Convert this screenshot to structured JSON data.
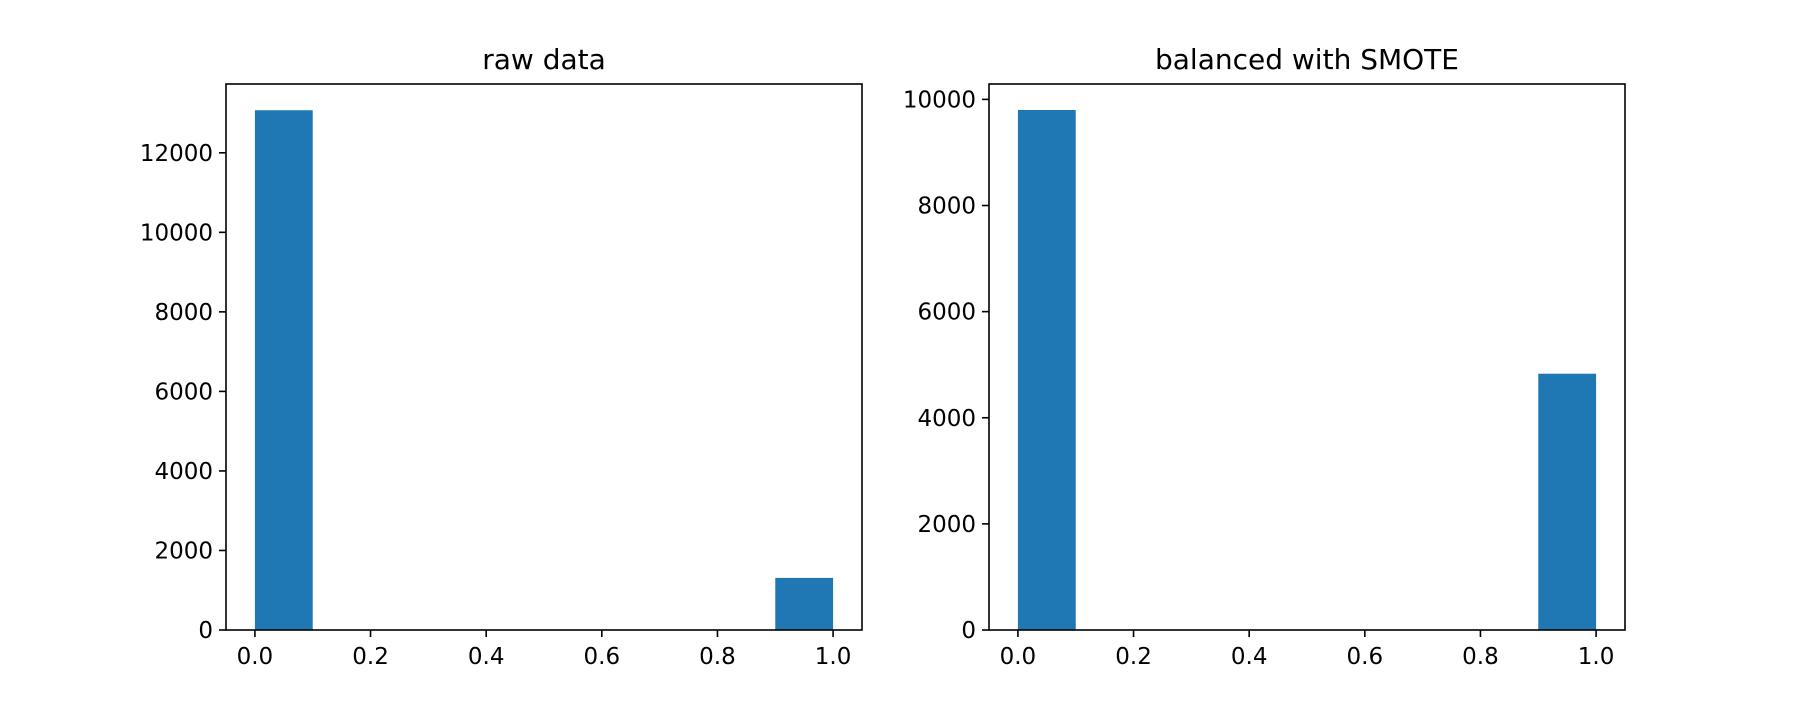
{
  "chart_data": [
    {
      "type": "bar",
      "title": "raw data",
      "xlabel": "",
      "ylabel": "",
      "xlim": [
        -0.05,
        1.05
      ],
      "ylim": [
        0,
        13730
      ],
      "xticks": [
        0.0,
        0.2,
        0.4,
        0.6,
        0.8,
        1.0
      ],
      "xtick_labels": [
        "0.0",
        "0.2",
        "0.4",
        "0.6",
        "0.8",
        "1.0"
      ],
      "yticks": [
        0,
        2000,
        4000,
        6000,
        8000,
        10000,
        12000
      ],
      "ytick_labels": [
        "0",
        "2000",
        "4000",
        "6000",
        "8000",
        "10000",
        "12000"
      ],
      "bins": [
        {
          "x0": 0.0,
          "x1": 0.1,
          "value": 13070
        },
        {
          "x0": 0.9,
          "x1": 1.0,
          "value": 1310
        }
      ],
      "color": "#1f77b4",
      "grid": false
    },
    {
      "type": "bar",
      "title": "balanced with SMOTE",
      "xlabel": "",
      "ylabel": "",
      "xlim": [
        -0.05,
        1.05
      ],
      "ylim": [
        0,
        10290
      ],
      "xticks": [
        0.0,
        0.2,
        0.4,
        0.6,
        0.8,
        1.0
      ],
      "xtick_labels": [
        "0.0",
        "0.2",
        "0.4",
        "0.6",
        "0.8",
        "1.0"
      ],
      "yticks": [
        0,
        2000,
        4000,
        6000,
        8000,
        10000
      ],
      "ytick_labels": [
        "0",
        "2000",
        "4000",
        "6000",
        "8000",
        "10000"
      ],
      "bins": [
        {
          "x0": 0.0,
          "x1": 0.1,
          "value": 9800
        },
        {
          "x0": 0.9,
          "x1": 1.0,
          "value": 4830
        }
      ],
      "color": "#1f77b4",
      "grid": false
    }
  ]
}
